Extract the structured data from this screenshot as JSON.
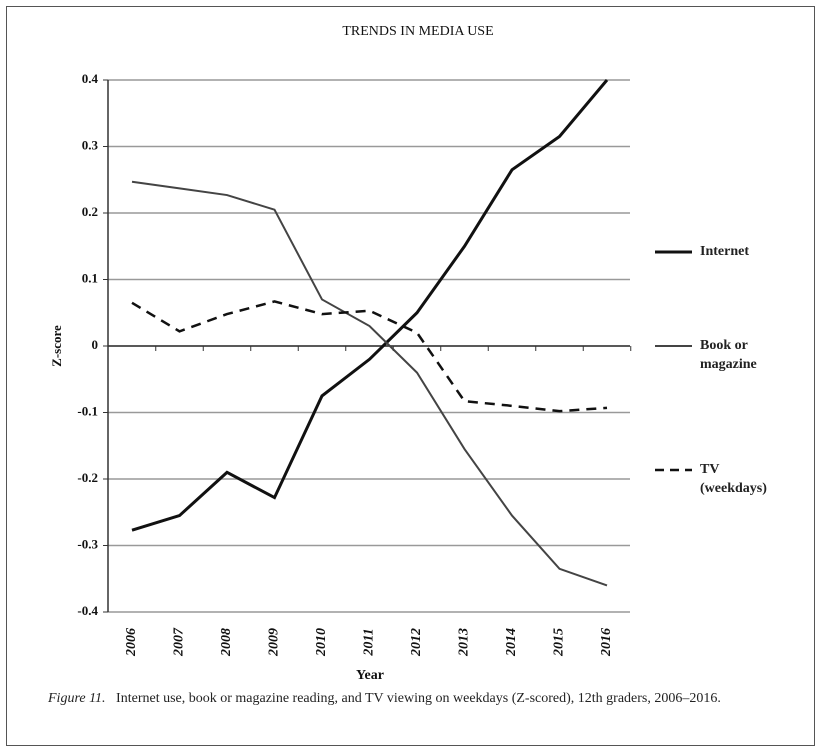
{
  "chart_data": {
    "type": "line",
    "title": "TRENDS IN MEDIA USE",
    "x_label": "Year",
    "y_label": "Z-score",
    "categories": [
      "2006",
      "2007",
      "2008",
      "2009",
      "2010",
      "2011",
      "2012",
      "2013",
      "2014",
      "2015",
      "2016"
    ],
    "series": [
      {
        "name": "Internet",
        "color": "#111111",
        "line_width": 3,
        "dashed": false,
        "values": [
          -0.277,
          -0.255,
          -0.19,
          -0.228,
          -0.075,
          -0.02,
          0.05,
          0.15,
          0.265,
          0.315,
          0.4
        ]
      },
      {
        "name": "Book or magazine",
        "color": "#444444",
        "line_width": 2,
        "dashed": false,
        "values": [
          0.247,
          0.237,
          0.227,
          0.205,
          0.07,
          0.03,
          -0.04,
          -0.155,
          -0.255,
          -0.335,
          -0.36
        ]
      },
      {
        "name": "TV (weekdays)",
        "color": "#111111",
        "line_width": 2.5,
        "dashed": true,
        "values": [
          0.065,
          0.022,
          0.048,
          0.067,
          0.048,
          0.053,
          0.02,
          -0.083,
          -0.09,
          -0.098,
          -0.093
        ]
      }
    ],
    "ylim": [
      -0.4,
      0.4
    ],
    "yticks": [
      -0.4,
      -0.3,
      -0.2,
      -0.1,
      0,
      0.1,
      0.2,
      0.3,
      0.4
    ],
    "grid": true,
    "legend": "right"
  },
  "caption": {
    "label": "Figure 11.",
    "text": "Internet use, book or magazine reading, and TV viewing on weekdays (Z-scored), 12th graders, 2006–2016."
  }
}
